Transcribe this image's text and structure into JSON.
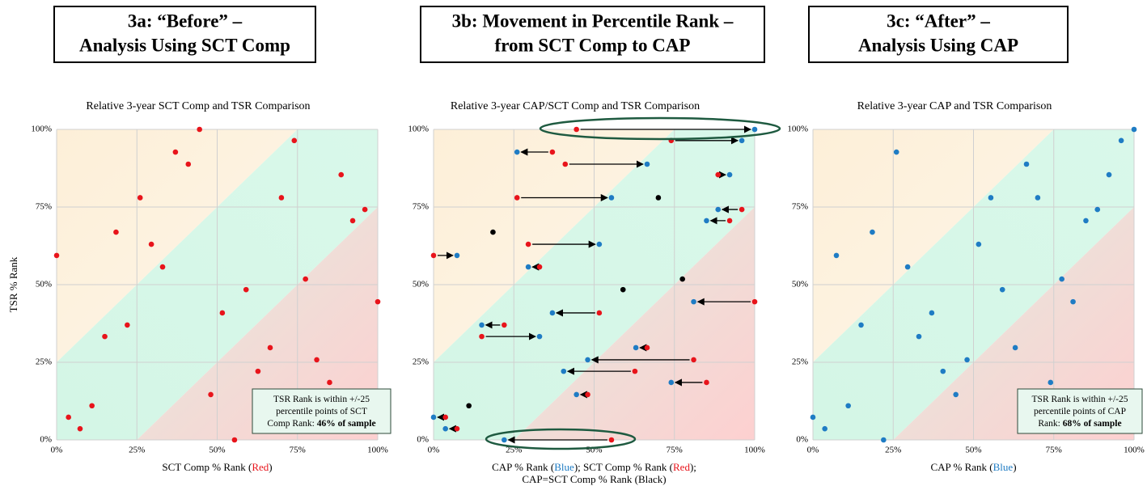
{
  "chart_data": [
    {
      "type": "scatter",
      "heading": [
        "3a: “Before” –",
        "Analysis Using SCT Comp"
      ],
      "title": "Relative 3-year SCT Comp and TSR Comparison",
      "x_label": [
        [
          {
            "text": "SCT Comp % Rank ("
          },
          {
            "text": "Red",
            "color": "#e8141b"
          },
          {
            "text": ")"
          }
        ]
      ],
      "y_label": "TSR % Rank",
      "xlim": [
        0,
        100
      ],
      "ylim": [
        0,
        100
      ],
      "xticks": [
        {
          "value": 0,
          "label": "0%"
        },
        {
          "value": 25,
          "label": "25%"
        },
        {
          "value": 50,
          "label": "50%"
        },
        {
          "value": 75,
          "label": "75%"
        },
        {
          "value": 100,
          "label": "100%"
        }
      ],
      "yticks": [
        {
          "value": 0,
          "label": "0%"
        },
        {
          "value": 25,
          "label": "25%"
        },
        {
          "value": 50,
          "label": "50%"
        },
        {
          "value": 75,
          "label": "75%"
        },
        {
          "value": 100,
          "label": "100%"
        }
      ],
      "grid": true,
      "color": "#e8141b",
      "x": [
        44.5,
        74,
        37,
        41,
        88.6,
        26,
        70,
        96,
        92.2,
        18.5,
        29.5,
        0,
        33,
        77.5,
        59,
        100,
        51.6,
        22,
        15,
        66.5,
        81,
        62.7,
        85,
        48,
        11,
        3.7,
        7.3,
        55.4
      ],
      "y": [
        100,
        96.4,
        92.7,
        88.8,
        85.4,
        78,
        78,
        74.2,
        70.6,
        66.9,
        63,
        59.4,
        55.7,
        51.8,
        48.4,
        44.5,
        40.9,
        37,
        33.3,
        29.7,
        25.8,
        22.1,
        18.5,
        14.6,
        11,
        7.3,
        3.6,
        0
      ],
      "note": [
        [
          {
            "text": "TSR Rank is within +/-25"
          }
        ],
        [
          {
            "text": "percentile points of SCT"
          }
        ],
        [
          {
            "text": "Comp Rank: "
          },
          {
            "text": "46% of sample",
            "bold": true
          }
        ]
      ]
    },
    {
      "type": "movement",
      "heading": [
        "3b: Movement in Percentile Rank –",
        "from SCT Comp to CAP"
      ],
      "title": "Relative 3-year CAP/SCT Comp and TSR Comparison",
      "x_label": [
        [
          {
            "text": "CAP % Rank ("
          },
          {
            "text": "Blue",
            "color": "#1f7cc4"
          },
          {
            "text": "); SCT Comp % Rank ("
          },
          {
            "text": "Red",
            "color": "#e8141b"
          },
          {
            "text": ");"
          }
        ],
        [
          {
            "text": "CAP=SCT Comp % Rank (Black)"
          }
        ]
      ],
      "xlim": [
        0,
        100
      ],
      "ylim": [
        0,
        100
      ],
      "xticks": [
        {
          "value": 0,
          "label": "0%"
        },
        {
          "value": 25,
          "label": "25%"
        },
        {
          "value": 50,
          "label": "50%"
        },
        {
          "value": 75,
          "label": "75%"
        },
        {
          "value": 100,
          "label": "100%"
        }
      ],
      "yticks": [
        {
          "value": 0,
          "label": "0%"
        },
        {
          "value": 25,
          "label": "25%"
        },
        {
          "value": 50,
          "label": "50%"
        },
        {
          "value": 75,
          "label": "75%"
        },
        {
          "value": 100,
          "label": "100%"
        }
      ],
      "grid": true,
      "before_color": "#e8141b",
      "after_color": "#1f7cc4",
      "same_color": "#000000",
      "x_before": [
        44.5,
        74,
        37,
        41,
        88.6,
        26,
        70,
        96,
        92.2,
        18.5,
        29.5,
        0,
        33,
        77.5,
        59,
        100,
        51.6,
        22,
        15,
        66.5,
        81,
        62.7,
        85,
        48,
        11,
        3.7,
        7.3,
        55.4
      ],
      "x_after": [
        100,
        96,
        26,
        66.5,
        92.2,
        55.4,
        70,
        88.6,
        85,
        18.5,
        51.6,
        7.3,
        29.5,
        77.5,
        59,
        81,
        37,
        15,
        33,
        63,
        48,
        40.5,
        74,
        44.5,
        11,
        0,
        3.7,
        22
      ],
      "y": [
        100,
        96.4,
        92.7,
        88.8,
        85.4,
        78,
        78,
        74.2,
        70.6,
        66.9,
        63,
        59.4,
        55.7,
        51.8,
        48.4,
        44.5,
        40.9,
        37,
        33.3,
        29.7,
        25.8,
        22.1,
        18.5,
        14.6,
        11,
        7.3,
        3.6,
        0
      ]
    },
    {
      "type": "scatter",
      "heading": [
        "3c: “After” –",
        "Analysis Using CAP"
      ],
      "title": "Relative 3-year CAP and TSR Comparison",
      "x_label": [
        [
          {
            "text": "CAP % Rank ("
          },
          {
            "text": "Blue",
            "color": "#1f7cc4"
          },
          {
            "text": ")"
          }
        ]
      ],
      "xlim": [
        0,
        100
      ],
      "ylim": [
        0,
        100
      ],
      "xticks": [
        {
          "value": 0,
          "label": "0%"
        },
        {
          "value": 25,
          "label": "25%"
        },
        {
          "value": 50,
          "label": "50%"
        },
        {
          "value": 75,
          "label": "75%"
        },
        {
          "value": 100,
          "label": "100%"
        }
      ],
      "yticks": [
        {
          "value": 0,
          "label": "0%"
        },
        {
          "value": 25,
          "label": "25%"
        },
        {
          "value": 50,
          "label": "50%"
        },
        {
          "value": 75,
          "label": "75%"
        },
        {
          "value": 100,
          "label": "100%"
        }
      ],
      "grid": true,
      "color": "#1f7cc4",
      "x": [
        100,
        96,
        26,
        66.5,
        92.2,
        55.4,
        70,
        88.6,
        85,
        18.5,
        51.6,
        7.3,
        29.5,
        77.5,
        59,
        81,
        37,
        15,
        33,
        63,
        48,
        40.5,
        74,
        44.5,
        11,
        0,
        3.7,
        22
      ],
      "y": [
        100,
        96.4,
        92.7,
        88.8,
        85.4,
        78,
        78,
        74.2,
        70.6,
        66.9,
        63,
        59.4,
        55.7,
        51.8,
        48.4,
        44.5,
        40.9,
        37,
        33.3,
        29.7,
        25.8,
        22.1,
        18.5,
        14.6,
        11,
        7.3,
        3.6,
        0
      ],
      "note": [
        [
          {
            "text": "TSR Rank is within +/-25"
          }
        ],
        [
          {
            "text": "percentile points of CAP"
          }
        ],
        [
          {
            "text": "Rank: "
          },
          {
            "text": "68% of sample",
            "bold": true
          }
        ]
      ]
    }
  ]
}
